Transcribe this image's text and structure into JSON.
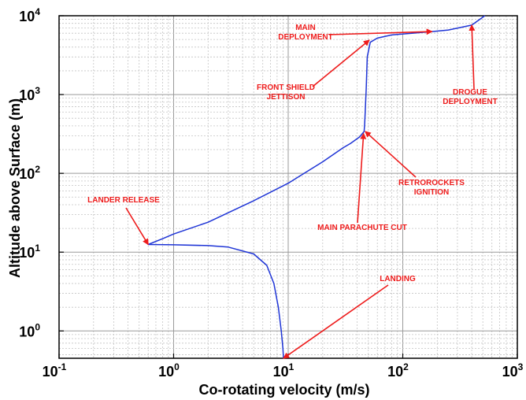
{
  "chart_data": {
    "type": "line",
    "xscale": "log",
    "yscale": "log",
    "xlim": [
      0.1,
      1000
    ],
    "ylim": [
      0.45,
      10000
    ],
    "grid": true,
    "xlabel": "Co-rotating velocity (m/s)",
    "ylabel": "Altitude above Surface (m)",
    "x_ticks": [
      {
        "base": "10",
        "exp": "-1"
      },
      {
        "base": "10",
        "exp": "0"
      },
      {
        "base": "10",
        "exp": "1"
      },
      {
        "base": "10",
        "exp": "2"
      },
      {
        "base": "10",
        "exp": "3"
      }
    ],
    "y_ticks": [
      {
        "base": "10",
        "exp": "0"
      },
      {
        "base": "10",
        "exp": "1"
      },
      {
        "base": "10",
        "exp": "2"
      },
      {
        "base": "10",
        "exp": "3"
      },
      {
        "base": "10",
        "exp": "4"
      }
    ],
    "series": [
      {
        "color": "#1f35d6",
        "points": [
          [
            520,
            10000
          ],
          [
            400,
            7600
          ],
          [
            250,
            6600
          ],
          [
            180,
            6300
          ],
          [
            120,
            6000
          ],
          [
            80,
            5700
          ],
          [
            60,
            5200
          ],
          [
            52,
            4600
          ],
          [
            49,
            3000
          ],
          [
            48,
            1200
          ],
          [
            47,
            600
          ],
          [
            46.5,
            420
          ],
          [
            46,
            340
          ],
          [
            42,
            290
          ],
          [
            35,
            240
          ],
          [
            30,
            210
          ],
          [
            20,
            140
          ],
          [
            10,
            75
          ],
          [
            5,
            45
          ],
          [
            2,
            24
          ],
          [
            1,
            17
          ],
          [
            0.8,
            14.8
          ],
          [
            0.6,
            12.5
          ],
          [
            1,
            12.4
          ],
          [
            2,
            12.1
          ],
          [
            3,
            11.6
          ],
          [
            5,
            9.5
          ],
          [
            6.5,
            6.8
          ],
          [
            7.5,
            4
          ],
          [
            8.2,
            2
          ],
          [
            8.7,
            1
          ],
          [
            9.0,
            0.6
          ],
          [
            9.1,
            0.45
          ]
        ]
      }
    ],
    "annotations": [
      {
        "lines": [
          "MAIN",
          "DEPLOYMENT"
        ],
        "point": [
          180,
          6300
        ]
      },
      {
        "lines": [
          "FRONT SHIELD",
          "JETTISON"
        ],
        "point": [
          51,
          4900
        ]
      },
      {
        "lines": [
          "DROGUE",
          "DEPLOYMENT"
        ],
        "point": [
          400,
          7600
        ]
      },
      {
        "lines": [
          "RETROROCKETS",
          "IGNITION"
        ],
        "point": [
          47,
          340
        ]
      },
      {
        "lines": [
          "LANDER RELEASE"
        ],
        "point": [
          0.6,
          12.5
        ]
      },
      {
        "lines": [
          "MAIN PARACHUTE CUT"
        ],
        "point": [
          45.5,
          320
        ]
      },
      {
        "lines": [
          "LANDING"
        ],
        "point": [
          9.1,
          0.45
        ]
      }
    ]
  }
}
